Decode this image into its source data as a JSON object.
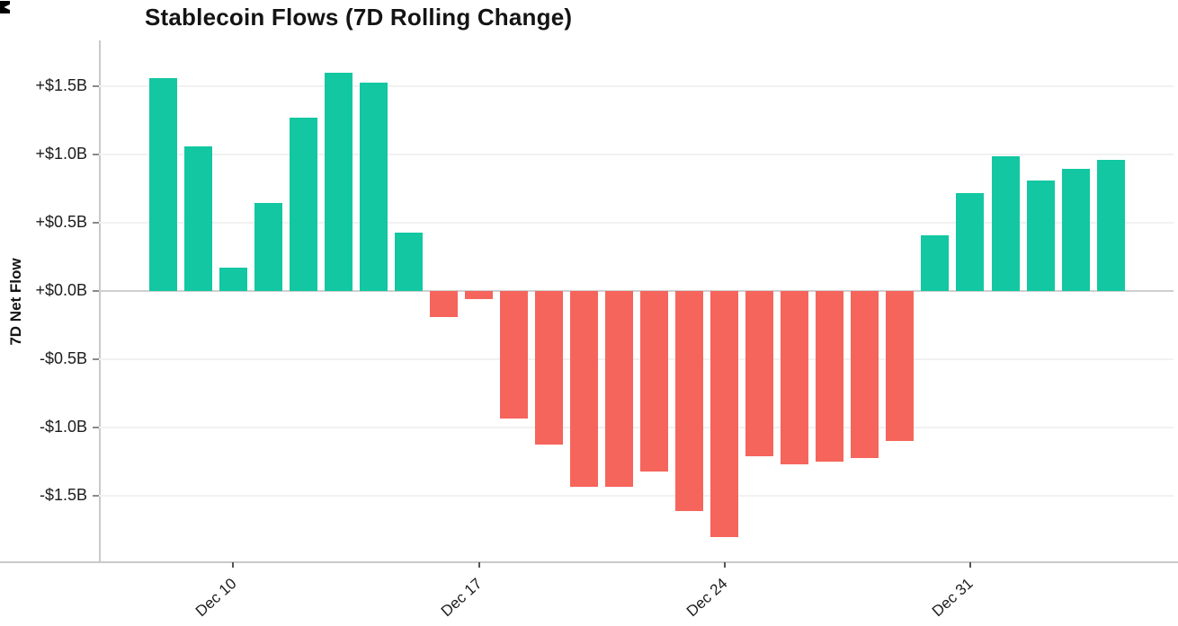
{
  "chart_data": {
    "type": "bar",
    "title": "Stablecoin Flows (7D Rolling Change)",
    "ylabel": "7D Net Flow",
    "xlabel": "",
    "values": [
      1.56,
      1.06,
      0.17,
      0.65,
      1.27,
      1.6,
      1.53,
      0.43,
      -0.19,
      -0.06,
      -0.93,
      -1.12,
      -1.43,
      -1.43,
      -1.32,
      -1.61,
      -1.8,
      -1.21,
      -1.27,
      -1.25,
      -1.22,
      -1.1,
      0.41,
      0.72,
      0.99,
      0.81,
      0.9,
      0.96
    ],
    "unit": "billions USD",
    "yticks": [
      {
        "label": "+$1.5B",
        "value": 1.5
      },
      {
        "label": "+$1.0B",
        "value": 1.0
      },
      {
        "label": "+$0.5B",
        "value": 0.5
      },
      {
        "label": "+$0.0B",
        "value": 0.0
      },
      {
        "label": "-$0.5B",
        "value": -0.5
      },
      {
        "label": "-$1.0B",
        "value": -1.0
      },
      {
        "label": "-$1.5B",
        "value": -1.5
      }
    ],
    "xticks": [
      {
        "label": "Dec 10",
        "bar_index": 2
      },
      {
        "label": "Dec 17",
        "bar_index": 9
      },
      {
        "label": "Dec 24",
        "bar_index": 16
      },
      {
        "label": "Dec 31",
        "bar_index": 23
      }
    ],
    "ylim": [
      -1.99,
      1.84
    ],
    "grid": "horizontal",
    "legend": "none",
    "colors": {
      "positive": "#12C7A1",
      "negative": "#F5655C",
      "gridline": "#f1f1f1",
      "axis": "#c9c9c9",
      "text": "#1c1c1c"
    }
  }
}
